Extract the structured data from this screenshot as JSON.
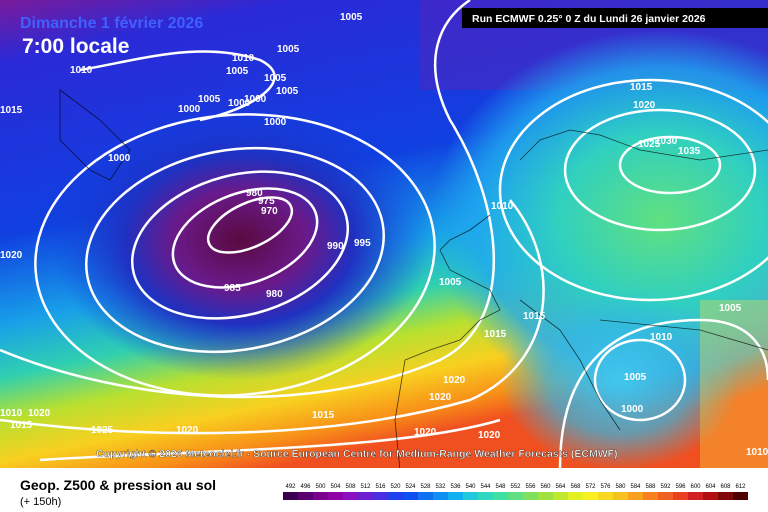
{
  "header": {
    "date": "Dimanche 1 février 2026",
    "time": "7:00 locale",
    "run": "Run ECMWF 0.25° 0 Z du Lundi 26 janvier 2026"
  },
  "copyright": "Copyright © 2026 Meteociel.fr - Source European Centre for Medium-Range Weather Forecasts (ECMWF)",
  "footer": {
    "title": "Geop. Z500 & pression au sol",
    "lead": "(+ 150h)"
  },
  "scale": [
    492,
    496,
    500,
    504,
    508,
    512,
    516,
    520,
    524,
    528,
    532,
    536,
    540,
    544,
    548,
    552,
    556,
    560,
    564,
    568,
    572,
    576,
    580,
    584,
    588,
    592,
    596,
    600,
    604,
    608,
    612
  ],
  "isobar_labels": [
    1005,
    1005,
    1010,
    1010,
    1005,
    1005,
    1005,
    1015,
    1005,
    1000,
    1000,
    1000,
    1000,
    1000,
    1015,
    1020,
    1025,
    1030,
    1035,
    1010,
    980,
    975,
    970,
    990,
    995,
    985,
    980,
    1020,
    1005,
    1015,
    1015,
    1010,
    1005,
    1005,
    1000,
    1020,
    1020,
    1015,
    1020,
    1010,
    1015,
    1025,
    1020,
    1020,
    1020,
    1010
  ]
}
